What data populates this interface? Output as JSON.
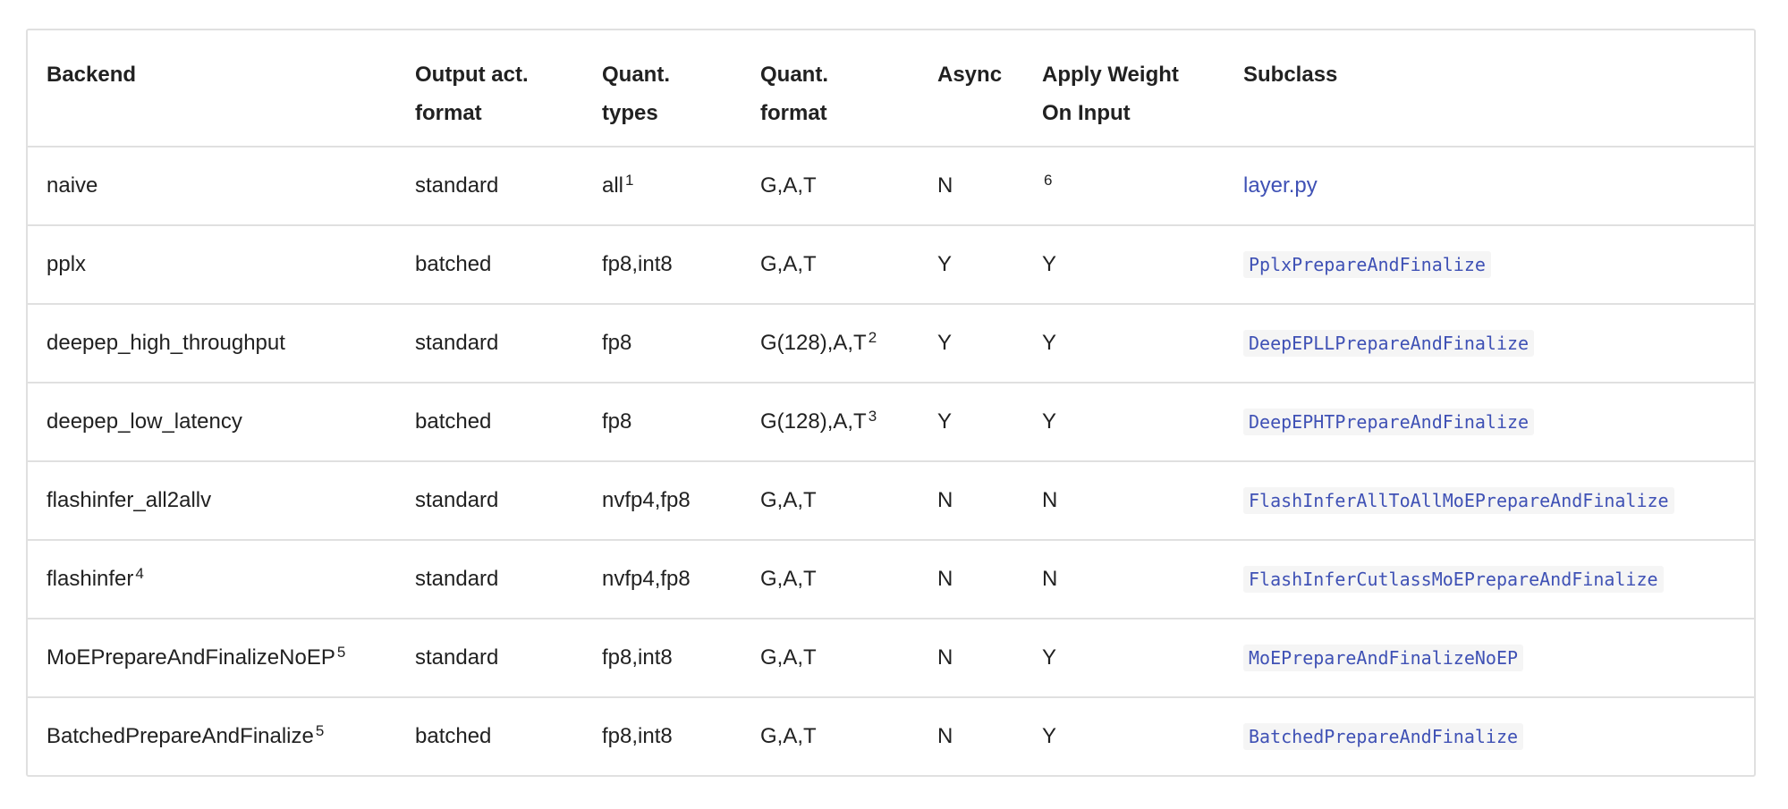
{
  "headers": [
    "Backend",
    "Output act. format",
    "Quant. types",
    "Quant. format",
    "Async",
    "Apply Weight On Input",
    "Subclass"
  ],
  "header_lines": [
    [
      "Backend"
    ],
    [
      "Output act.",
      "format"
    ],
    [
      "Quant.",
      "types"
    ],
    [
      "Quant.",
      "format"
    ],
    [
      "Async"
    ],
    [
      "Apply Weight",
      "On Input"
    ],
    [
      "Subclass"
    ]
  ],
  "rows": [
    {
      "backend": "naive",
      "backend_sup": "",
      "output": "standard",
      "types": "all",
      "types_sup": "1",
      "format": "G,A,T",
      "format_sup": "",
      "async": "N",
      "apply": "",
      "apply_sup": "6",
      "subclass": "layer.py",
      "subclass_kind": "link"
    },
    {
      "backend": "pplx",
      "backend_sup": "",
      "output": "batched",
      "types": "fp8,int8",
      "types_sup": "",
      "format": "G,A,T",
      "format_sup": "",
      "async": "Y",
      "apply": "Y",
      "apply_sup": "",
      "subclass": "PplxPrepareAndFinalize",
      "subclass_kind": "code"
    },
    {
      "backend": "deepep_high_throughput",
      "backend_sup": "",
      "output": "standard",
      "types": "fp8",
      "types_sup": "",
      "format": "G(128),A,T",
      "format_sup": "2",
      "async": "Y",
      "apply": "Y",
      "apply_sup": "",
      "subclass": "DeepEPLLPrepareAndFinalize",
      "subclass_kind": "code"
    },
    {
      "backend": "deepep_low_latency",
      "backend_sup": "",
      "output": "batched",
      "types": "fp8",
      "types_sup": "",
      "format": "G(128),A,T",
      "format_sup": "3",
      "async": "Y",
      "apply": "Y",
      "apply_sup": "",
      "subclass": "DeepEPHTPrepareAndFinalize",
      "subclass_kind": "code"
    },
    {
      "backend": "flashinfer_all2allv",
      "backend_sup": "",
      "output": "standard",
      "types": "nvfp4,fp8",
      "types_sup": "",
      "format": "G,A,T",
      "format_sup": "",
      "async": "N",
      "apply": "N",
      "apply_sup": "",
      "subclass": "FlashInferAllToAllMoEPrepareAndFinalize",
      "subclass_kind": "code"
    },
    {
      "backend": "flashinfer",
      "backend_sup": "4",
      "output": "standard",
      "types": "nvfp4,fp8",
      "types_sup": "",
      "format": "G,A,T",
      "format_sup": "",
      "async": "N",
      "apply": "N",
      "apply_sup": "",
      "subclass": "FlashInferCutlassMoEPrepareAndFinalize",
      "subclass_kind": "code"
    },
    {
      "backend": "MoEPrepareAndFinalizeNoEP",
      "backend_sup": "5",
      "output": "standard",
      "types": "fp8,int8",
      "types_sup": "",
      "format": "G,A,T",
      "format_sup": "",
      "async": "N",
      "apply": "Y",
      "apply_sup": "",
      "subclass": "MoEPrepareAndFinalizeNoEP",
      "subclass_kind": "code"
    },
    {
      "backend": "BatchedPrepareAndFinalize",
      "backend_sup": "5",
      "output": "batched",
      "types": "fp8,int8",
      "types_sup": "",
      "format": "G,A,T",
      "format_sup": "",
      "async": "N",
      "apply": "Y",
      "apply_sup": "",
      "subclass": "BatchedPrepareAndFinalize",
      "subclass_kind": "code"
    }
  ],
  "colors": {
    "text": "#212121",
    "link": "#3f51b5",
    "code_bg": "#f5f5f5",
    "border": "#e0e0e0"
  }
}
